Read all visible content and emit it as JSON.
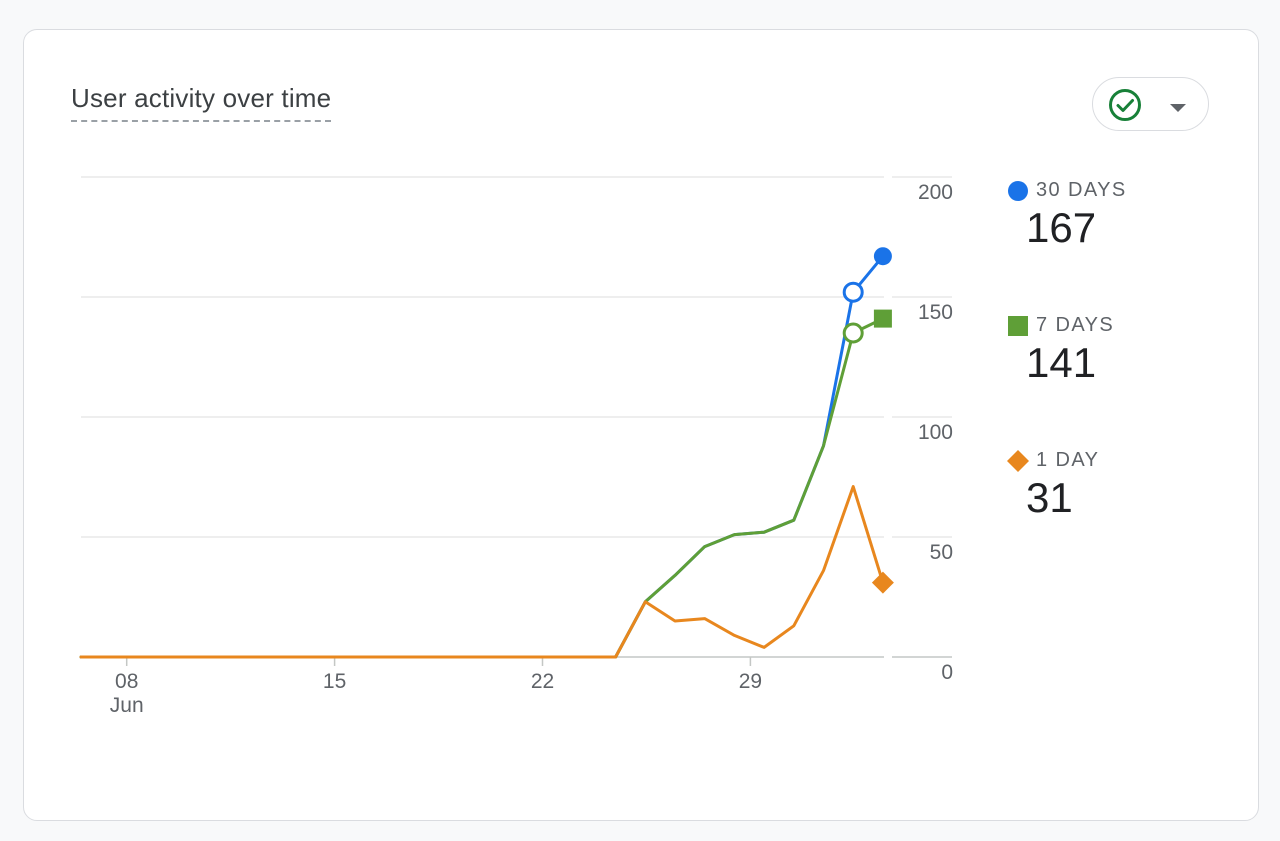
{
  "card": {
    "title": "User activity over time"
  },
  "filter": {
    "icon": "check-circle-icon",
    "dropdown_icon": "caret-down-icon",
    "color": "#188038"
  },
  "legend": [
    {
      "label": "30 DAYS",
      "value": "167",
      "color": "#1a73e8",
      "marker": "circle"
    },
    {
      "label": "7 DAYS",
      "value": "141",
      "color": "#5f9f37",
      "marker": "square"
    },
    {
      "label": "1 DAY",
      "value": "31",
      "color": "#e8871e",
      "marker": "diamond"
    }
  ],
  "chart_data": {
    "type": "line",
    "title": "User activity over time",
    "x_ticks": [
      "08",
      "15",
      "22",
      "29"
    ],
    "x_tick_sub": "Jun",
    "x_tick_indices": [
      1,
      8,
      15,
      22
    ],
    "y_ticks": [
      200,
      150,
      100,
      50,
      0
    ],
    "ylim": [
      0,
      200
    ],
    "axis_side": "right",
    "grid": true,
    "x": [
      "Jun 7",
      "Jun 8",
      "Jun 9",
      "Jun 10",
      "Jun 11",
      "Jun 12",
      "Jun 13",
      "Jun 14",
      "Jun 15",
      "Jun 16",
      "Jun 17",
      "Jun 18",
      "Jun 19",
      "Jun 20",
      "Jun 21",
      "Jun 22",
      "Jun 23",
      "Jun 24",
      "Jun 25",
      "Jun 26",
      "Jun 27",
      "Jun 28",
      "Jun 29",
      "Jun 30",
      "Jul 1",
      "Jul 2",
      "Jul 3",
      "Jul 4"
    ],
    "series": [
      {
        "name": "30 DAYS",
        "color": "#1a73e8",
        "values": [
          0,
          0,
          0,
          0,
          0,
          0,
          0,
          0,
          0,
          0,
          0,
          0,
          0,
          0,
          0,
          0,
          0,
          0,
          0,
          23,
          34,
          46,
          51,
          52,
          57,
          88,
          152,
          167
        ]
      },
      {
        "name": "7 DAYS",
        "color": "#5f9f37",
        "values": [
          0,
          0,
          0,
          0,
          0,
          0,
          0,
          0,
          0,
          0,
          0,
          0,
          0,
          0,
          0,
          0,
          0,
          0,
          0,
          23,
          34,
          46,
          51,
          52,
          57,
          88,
          135,
          141
        ]
      },
      {
        "name": "1 DAY",
        "color": "#e8871e",
        "values": [
          0,
          0,
          0,
          0,
          0,
          0,
          0,
          0,
          0,
          0,
          0,
          0,
          0,
          0,
          0,
          0,
          0,
          0,
          0,
          23,
          15,
          16,
          9,
          4,
          13,
          36,
          71,
          31
        ]
      }
    ]
  }
}
